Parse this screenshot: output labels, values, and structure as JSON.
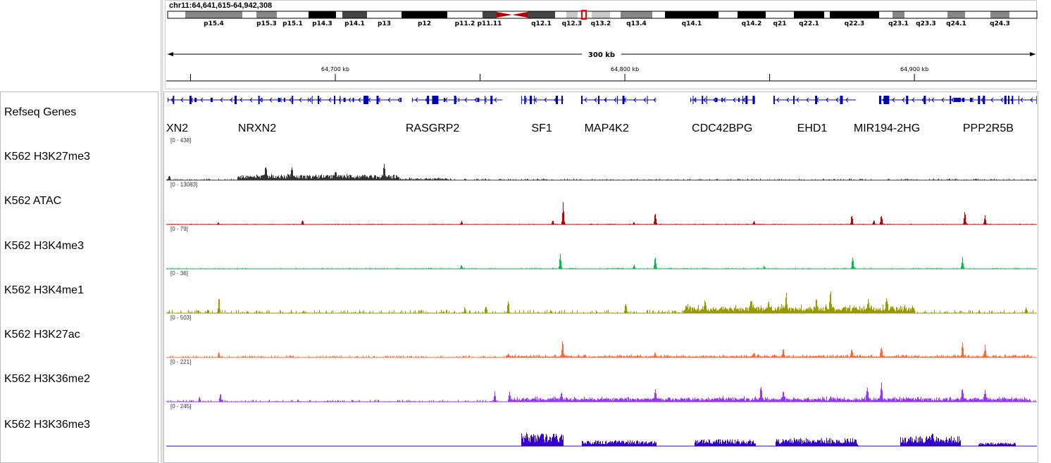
{
  "locus": "chr11:64,641,615-64,942,308",
  "region": {
    "start": 64641615,
    "end": 64942308
  },
  "ruler": {
    "span_label": "300 kb",
    "tick_labels": [
      "64,700 kb",
      "64,800 kb",
      "64,900 kb"
    ]
  },
  "cytobands": [
    {
      "name": "",
      "stain": "gneg"
    },
    {
      "name": "p15.4",
      "stain": "gpos50"
    },
    {
      "name": "",
      "stain": "gneg"
    },
    {
      "name": "p15.3",
      "stain": "gpos50"
    },
    {
      "name": "p15.1",
      "stain": "gneg"
    },
    {
      "name": "p14.3",
      "stain": "gpos100"
    },
    {
      "name": "",
      "stain": "gneg"
    },
    {
      "name": "p14.1",
      "stain": "gpos75"
    },
    {
      "name": "p13",
      "stain": "gneg"
    },
    {
      "name": "p12",
      "stain": "gpos100"
    },
    {
      "name": "p11.2",
      "stain": "gneg"
    },
    {
      "name": "p11.11",
      "stain": "gpos75"
    },
    {
      "name": "",
      "stain": "acen"
    },
    {
      "name": "q12.1",
      "stain": "gpos75"
    },
    {
      "name": "",
      "stain": "gneg"
    },
    {
      "name": "q12.3",
      "stain": "gpos25"
    },
    {
      "name": "",
      "stain": "gneg"
    },
    {
      "name": "q13.2",
      "stain": "gpos25"
    },
    {
      "name": "",
      "stain": "gneg"
    },
    {
      "name": "q13.4",
      "stain": "gpos50"
    },
    {
      "name": "",
      "stain": "gneg"
    },
    {
      "name": "q14.1",
      "stain": "gpos100"
    },
    {
      "name": "",
      "stain": "gneg"
    },
    {
      "name": "q14.2",
      "stain": "gpos100"
    },
    {
      "name": "q21",
      "stain": "gneg"
    },
    {
      "name": "q22.1",
      "stain": "gpos100"
    },
    {
      "name": "",
      "stain": "gneg"
    },
    {
      "name": "q22.3",
      "stain": "gpos100"
    },
    {
      "name": "",
      "stain": "gneg"
    },
    {
      "name": "q23.1",
      "stain": "gpos50"
    },
    {
      "name": "q23.3",
      "stain": "gneg"
    },
    {
      "name": "q24.1",
      "stain": "gpos50"
    },
    {
      "name": "",
      "stain": "gneg"
    },
    {
      "name": "q24.3",
      "stain": "gpos50"
    },
    {
      "name": "",
      "stain": "gneg"
    }
  ],
  "gene_track": {
    "name": "Refseq Genes",
    "color": "#0000b4",
    "genes": [
      {
        "label": "XN2",
        "center_kb": 64642.5,
        "span_kb": [
          64642.1,
          64722.9
        ]
      },
      {
        "label": "NRXN2",
        "center_kb": 64673.0,
        "span_kb": [
          64642.1,
          64722.9
        ]
      },
      {
        "label": "RASGRP2",
        "center_kb": 64733.6,
        "span_kb": [
          64726.5,
          64757.7
        ]
      },
      {
        "label": "SF1",
        "center_kb": 64771.3,
        "span_kb": [
          64764.2,
          64778.8
        ]
      },
      {
        "label": "MAP4K2",
        "center_kb": 64793.7,
        "span_kb": [
          64784.9,
          64810.9
        ]
      },
      {
        "label": "CDC42BPG",
        "center_kb": 64833.6,
        "span_kb": [
          64822.6,
          64845.0
        ]
      },
      {
        "label": "EHD1",
        "center_kb": 64864.7,
        "span_kb": [
          64851.3,
          64879.8
        ]
      },
      {
        "label": "MIR194-2HG",
        "center_kb": 64890.5,
        "span_kb": [
          64887.8,
          64942.3
        ]
      },
      {
        "label": "PPP2R5B",
        "center_kb": 64925.5,
        "span_kb": [
          64887.8,
          64942.3
        ]
      }
    ]
  },
  "tracks": [
    {
      "name": "K562 H3K27me3",
      "range": "[0 - 438]",
      "max": 438,
      "color": "#333333",
      "base": 8,
      "peaks": [
        [
          64642.6,
          60
        ],
        [
          64675.9,
          160
        ],
        [
          64684.9,
          100
        ],
        [
          64716.8,
          190
        ],
        [
          64700,
          70
        ]
      ],
      "broad": [
        [
          64666,
          64722,
          40
        ],
        [
          64722,
          64740,
          10
        ]
      ]
    },
    {
      "name": "K562 ATAC",
      "range": "[0 - 13083]",
      "max": 13083,
      "color": "#c00000",
      "base": 120,
      "peaks": [
        [
          64778.6,
          7600
        ],
        [
          64810.4,
          4500
        ],
        [
          64878.3,
          3600
        ],
        [
          64888.5,
          3800
        ],
        [
          64917.3,
          5600
        ],
        [
          64924.3,
          3100
        ],
        [
          64688.6,
          1500
        ],
        [
          64743.5,
          1200
        ],
        [
          64844.5,
          1200
        ],
        [
          64885.9,
          1800
        ],
        [
          64659.5,
          700
        ],
        [
          64775,
          1500
        ],
        [
          64803,
          900
        ]
      ],
      "broad": []
    },
    {
      "name": "K562 H3K4me3",
      "range": "[0 - 79]",
      "max": 79,
      "color": "#00c040",
      "base": 1,
      "peaks": [
        [
          64777.6,
          30
        ],
        [
          64810.4,
          30
        ],
        [
          64878.6,
          28
        ],
        [
          64916.5,
          25
        ],
        [
          64743.5,
          8
        ],
        [
          64803.1,
          8
        ],
        [
          64848,
          6
        ]
      ],
      "broad": []
    },
    {
      "name": "K562 H3K4me1",
      "range": "[0 - 36]",
      "max": 36,
      "color": "#999900",
      "base": 1.5,
      "peaks": [
        [
          64659.7,
          14
        ],
        [
          64759.6,
          12
        ],
        [
          64800.3,
          9
        ],
        [
          64827.6,
          6
        ],
        [
          64843.4,
          10
        ],
        [
          64855.6,
          16
        ],
        [
          64870.9,
          18
        ],
        [
          64890.3,
          9
        ],
        [
          64849.5,
          8
        ],
        [
          64938.4,
          6
        ],
        [
          64744.7,
          6
        ],
        [
          64752,
          7
        ],
        [
          64866,
          9
        ],
        [
          64884,
          8
        ]
      ],
      "broad": [
        [
          64820,
          64900,
          4
        ]
      ]
    },
    {
      "name": "K562 H3K27ac",
      "range": "[0 - 503]",
      "max": 503,
      "color": "#ff6633",
      "base": 12,
      "peaks": [
        [
          64778.4,
          200
        ],
        [
          64854.6,
          110
        ],
        [
          64878.3,
          110
        ],
        [
          64888.5,
          130
        ],
        [
          64916.5,
          180
        ],
        [
          64924.3,
          140
        ],
        [
          64659.7,
          75
        ],
        [
          64810.4,
          50
        ],
        [
          64759.6,
          60
        ],
        [
          64844.5,
          50
        ]
      ],
      "broad": [
        [
          64760,
          64940,
          12
        ]
      ]
    },
    {
      "name": "K562 H3K36me2",
      "range": "[0 - 221]",
      "max": 221,
      "color": "#9933ff",
      "base": 6,
      "peaks": [
        [
          64660.2,
          55
        ],
        [
          64755,
          60
        ],
        [
          64778,
          45
        ],
        [
          64810.4,
          60
        ],
        [
          64846.9,
          90
        ],
        [
          64888.5,
          100
        ],
        [
          64883.6,
          70
        ],
        [
          64916.5,
          70
        ],
        [
          64924.3,
          60
        ],
        [
          64854.6,
          55
        ],
        [
          64653,
          30
        ],
        [
          64760,
          40
        ]
      ],
      "broad": [
        [
          64760,
          64940,
          14
        ]
      ]
    },
    {
      "name": "K562 H3K36me3",
      "range": "[0 - 245]",
      "max": 245,
      "color": "#3300cc",
      "base": 1,
      "peaks": [
        [
          64766,
          25
        ],
        [
          64880,
          20
        ],
        [
          64906,
          30
        ]
      ],
      "broad": [
        [
          64764,
          64778.8,
          55
        ],
        [
          64785,
          64810.9,
          25
        ],
        [
          64824,
          64845,
          30
        ],
        [
          64852,
          64879.8,
          35
        ],
        [
          64895,
          64916,
          45
        ],
        [
          64922,
          64935,
          15
        ]
      ]
    }
  ]
}
